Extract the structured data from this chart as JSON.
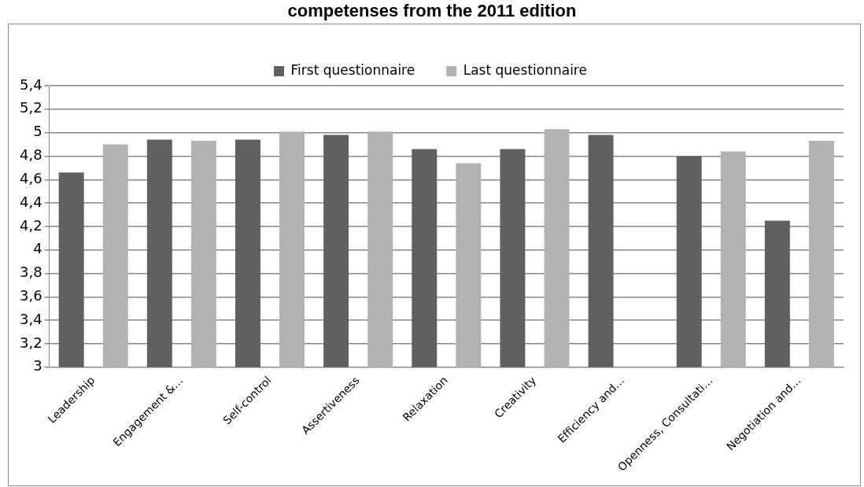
{
  "chart_data": {
    "type": "bar",
    "title": "competenses from the 2011 edition",
    "categories": [
      "Leadership",
      "Engagement &…",
      "Self-control",
      "Assertiveness",
      "Relaxation",
      "Creativity",
      "Efficiency and…",
      "Openness, Consultati…",
      "Negotiation and…"
    ],
    "series": [
      {
        "name": "First questionnaire",
        "color": "#606060",
        "values": [
          4.66,
          4.94,
          4.94,
          4.98,
          4.86,
          4.86,
          4.98,
          4.8,
          4.25
        ]
      },
      {
        "name": "Last questionnaire",
        "color": "#b2b2b2",
        "values": [
          4.9,
          4.93,
          5.01,
          5.01,
          4.74,
          5.03,
          null,
          4.84,
          4.93
        ]
      }
    ],
    "ylim": [
      3,
      5.4
    ],
    "yticks": [
      {
        "value": 3,
        "label": "3"
      },
      {
        "value": 3.2,
        "label": "3,2"
      },
      {
        "value": 3.4,
        "label": "3,4"
      },
      {
        "value": 3.6,
        "label": "3,6"
      },
      {
        "value": 3.8,
        "label": "3,8"
      },
      {
        "value": 4,
        "label": "4"
      },
      {
        "value": 4.2,
        "label": "4,2"
      },
      {
        "value": 4.4,
        "label": "4,4"
      },
      {
        "value": 4.6,
        "label": "4,6"
      },
      {
        "value": 4.8,
        "label": "4,8"
      },
      {
        "value": 5,
        "label": "5"
      },
      {
        "value": 5.2,
        "label": "5,2"
      },
      {
        "value": 5.4,
        "label": "5,4"
      }
    ],
    "grid": "y",
    "legend": "top"
  }
}
